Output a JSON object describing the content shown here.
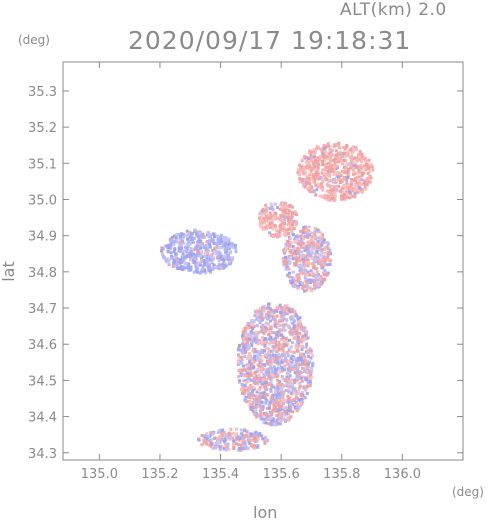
{
  "header": {
    "altitude_label": "ALT(km) 2.0",
    "datetime": "2020/09/17 19:18:31"
  },
  "axes": {
    "x_title": "lon",
    "y_title": "lat",
    "x_unit": "(deg)",
    "y_unit": "(deg)",
    "x_ticks": [
      "135.0",
      "135.2",
      "135.4",
      "135.6",
      "135.8",
      "136.0"
    ],
    "y_ticks": [
      "35.3",
      "35.2",
      "35.1",
      "35.0",
      "34.9",
      "34.8",
      "34.7",
      "34.6",
      "34.5",
      "34.4",
      "34.3"
    ]
  },
  "chart_data": {
    "type": "heatmap",
    "x_range": [
      134.88,
      136.2
    ],
    "y_range": [
      34.28,
      35.38
    ],
    "x_ticks": [
      135.0,
      135.2,
      135.4,
      135.6,
      135.8,
      136.0
    ],
    "y_ticks": [
      35.3,
      35.2,
      35.1,
      35.0,
      34.9,
      34.8,
      34.7,
      34.6,
      34.5,
      34.4,
      34.3
    ],
    "colormap": {
      "positive": "#f4b3b3",
      "negative": "#b3b8f4",
      "zero": "#ffffff"
    },
    "echo_regions": [
      {
        "lon": [
          135.65,
          135.9
        ],
        "lat": [
          35.0,
          35.16
        ],
        "polarity": "positive"
      },
      {
        "lon": [
          135.52,
          135.65
        ],
        "lat": [
          34.9,
          35.0
        ],
        "polarity": "positive"
      },
      {
        "lon": [
          135.2,
          135.45
        ],
        "lat": [
          34.8,
          34.92
        ],
        "polarity": "negative"
      },
      {
        "lon": [
          135.6,
          135.76
        ],
        "lat": [
          34.75,
          34.93
        ],
        "polarity": "mixed"
      },
      {
        "lon": [
          135.45,
          135.7
        ],
        "lat": [
          34.38,
          34.72
        ],
        "polarity": "mixed"
      },
      {
        "lon": [
          135.32,
          135.55
        ],
        "lat": [
          34.31,
          34.37
        ],
        "polarity": "mixed"
      }
    ]
  }
}
